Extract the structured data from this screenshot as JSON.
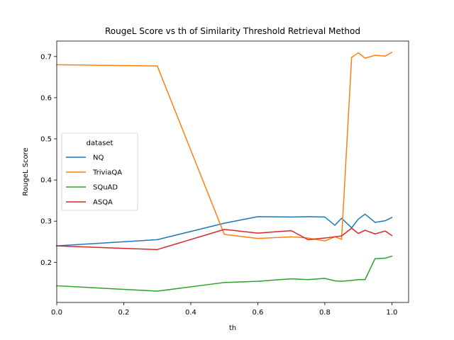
{
  "chart_data": {
    "type": "line",
    "title": "RougeL Score vs th of Similarity Threshold Retrieval Method",
    "xlabel": "th",
    "ylabel": "RougeL Score",
    "xlim": [
      0.0,
      1.05
    ],
    "ylim": [
      0.1025,
      0.7375
    ],
    "xticks": [
      0.0,
      0.2,
      0.4,
      0.6,
      0.8,
      1.0
    ],
    "xtick_labels": [
      "0.0",
      "0.2",
      "0.4",
      "0.6",
      "0.8",
      "1.0"
    ],
    "yticks": [
      0.2,
      0.3,
      0.4,
      0.5,
      0.6,
      0.7
    ],
    "ytick_labels": [
      "0.2",
      "0.3",
      "0.4",
      "0.5",
      "0.6",
      "0.7"
    ],
    "grid": false,
    "legend": {
      "title": "dataset",
      "placement": "center-left"
    },
    "x": [
      0.0,
      0.3,
      0.5,
      0.6,
      0.7,
      0.75,
      0.8,
      0.83,
      0.85,
      0.88,
      0.9,
      0.92,
      0.95,
      0.98,
      1.0
    ],
    "series": [
      {
        "name": "NQ",
        "color": "#1f77b4",
        "values": [
          0.24,
          0.255,
          0.295,
          0.311,
          0.31,
          0.311,
          0.31,
          0.29,
          0.307,
          0.284,
          0.305,
          0.317,
          0.297,
          0.301,
          0.309
        ]
      },
      {
        "name": "TriviaQA",
        "color": "#ff7f0e",
        "values": [
          0.68,
          0.677,
          0.268,
          0.258,
          0.262,
          0.259,
          0.252,
          0.262,
          0.256,
          0.698,
          0.709,
          0.696,
          0.703,
          0.701,
          0.71
        ]
      },
      {
        "name": "SQuAD",
        "color": "#2ca02c",
        "values": [
          0.143,
          0.13,
          0.151,
          0.154,
          0.16,
          0.158,
          0.161,
          0.155,
          0.154,
          0.156,
          0.158,
          0.158,
          0.209,
          0.21,
          0.215
        ]
      },
      {
        "name": "ASQA",
        "color": "#d62728",
        "values": [
          0.24,
          0.231,
          0.28,
          0.271,
          0.277,
          0.255,
          0.259,
          0.262,
          0.264,
          0.283,
          0.27,
          0.278,
          0.269,
          0.276,
          0.265
        ]
      }
    ]
  }
}
